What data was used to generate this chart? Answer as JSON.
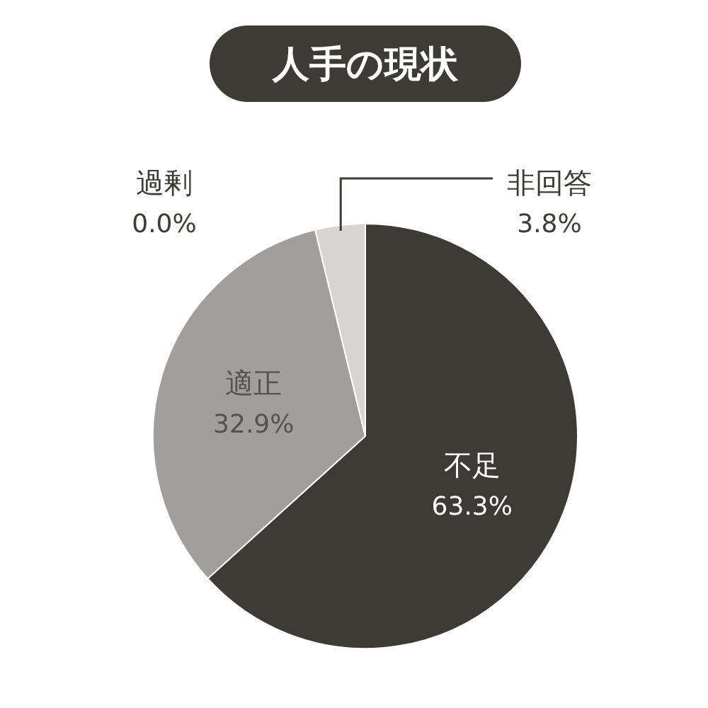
{
  "chart_data": {
    "type": "pie",
    "title": "人手の現状",
    "categories": [
      "不足",
      "適正",
      "過剰",
      "非回答"
    ],
    "values": [
      63.3,
      32.9,
      0.0,
      3.8
    ],
    "value_labels": [
      "63.3%",
      "32.9%",
      "0.0%",
      "3.8%"
    ],
    "colors": [
      "#3d3b35",
      "#a19f9b",
      "#8a8883",
      "#d6d5d2"
    ],
    "legend": false
  }
}
